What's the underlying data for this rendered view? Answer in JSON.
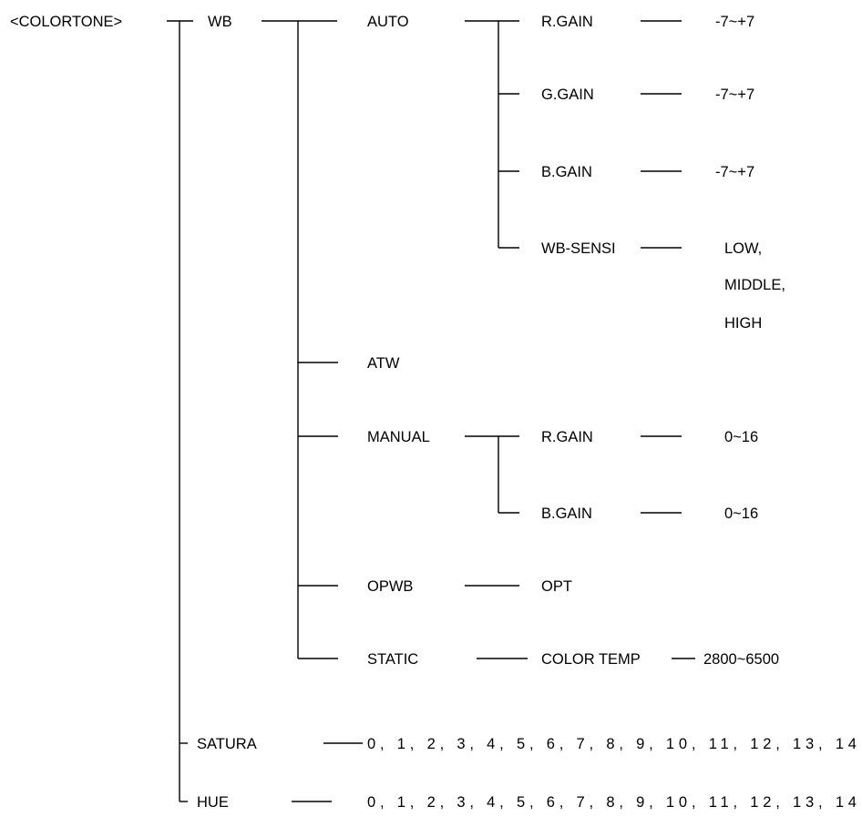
{
  "menu": {
    "root": "<COLORTONE>",
    "wb": {
      "label": "WB",
      "auto": {
        "label": "AUTO",
        "r_gain": {
          "label": "R.GAIN",
          "range": "-7~+7"
        },
        "g_gain": {
          "label": "G.GAIN",
          "range": "-7~+7"
        },
        "b_gain": {
          "label": "B.GAIN",
          "range": "-7~+7"
        },
        "wb_sensi": {
          "label": "WB-SENSI",
          "options": [
            "LOW,",
            "MIDDLE,",
            "HIGH"
          ]
        }
      },
      "atw": {
        "label": "ATW"
      },
      "manual": {
        "label": "MANUAL",
        "r_gain": {
          "label": "R.GAIN",
          "range": "0~16"
        },
        "b_gain": {
          "label": "B.GAIN",
          "range": "0~16"
        }
      },
      "opwb": {
        "label": "OPWB",
        "value": "OPT"
      },
      "static": {
        "label": "STATIC",
        "color_temp": {
          "label": "COLOR TEMP",
          "range": "2800~6500"
        }
      }
    },
    "satura": {
      "label": "SATURA",
      "values": "0, 1, 2, 3, 4, 5, 6, 7, 8, 9, 10, 11, 12, 13, 14"
    },
    "hue": {
      "label": "HUE",
      "values": "0, 1, 2, 3, 4, 5, 6, 7, 8, 9, 10, 11, 12, 13, 14"
    }
  }
}
